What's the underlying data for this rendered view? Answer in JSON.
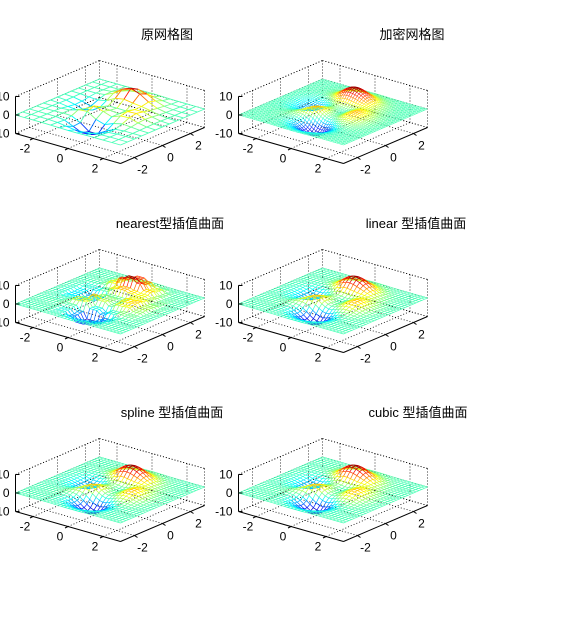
{
  "figure": {
    "background": "#ffffff",
    "axis_color": "#000000",
    "grid_color": "#000000"
  },
  "chart_data": [
    {
      "type": "mesh3d",
      "title": "原网格图",
      "grid_points": 13,
      "xlim": [
        -3,
        3
      ],
      "ylim": [
        -3,
        3
      ],
      "zlim": [
        -10,
        10
      ],
      "xticks": [
        "-2",
        "0",
        "2"
      ],
      "yticks": [
        "-2",
        "0",
        "2"
      ],
      "zticks": [
        "-10",
        "0",
        "10"
      ],
      "colormap": "jet",
      "grid": true,
      "peak_max": 8.1,
      "trough_min": -6.55
    },
    {
      "type": "mesh3d",
      "title": "加密网格图",
      "grid_points": 49,
      "xlim": [
        -3,
        3
      ],
      "ylim": [
        -3,
        3
      ],
      "zlim": [
        -10,
        10
      ],
      "xticks": [
        "-2",
        "0",
        "2"
      ],
      "yticks": [
        "-2",
        "0",
        "2"
      ],
      "zticks": [
        "-10",
        "0",
        "10"
      ],
      "colormap": "jet",
      "grid": true,
      "peak_max": 8.1,
      "trough_min": -6.55
    },
    {
      "type": "mesh3d",
      "title": "nearest型插值曲面",
      "grid_points": 31,
      "interpolation": "nearest",
      "xlim": [
        -3,
        3
      ],
      "ylim": [
        -3,
        3
      ],
      "zlim": [
        -10,
        10
      ],
      "xticks": [
        "-2",
        "0",
        "2"
      ],
      "yticks": [
        "-2",
        "0",
        "2"
      ],
      "zticks": [
        "-10",
        "0",
        "10"
      ],
      "colormap": "jet",
      "grid": true,
      "peak_max": 8.1,
      "trough_min": -6.55
    },
    {
      "type": "mesh3d",
      "title": "linear 型插值曲面",
      "grid_points": 31,
      "interpolation": "linear",
      "xlim": [
        -3,
        3
      ],
      "ylim": [
        -3,
        3
      ],
      "zlim": [
        -10,
        10
      ],
      "xticks": [
        "-2",
        "0",
        "2"
      ],
      "yticks": [
        "-2",
        "0",
        "2"
      ],
      "zticks": [
        "-10",
        "0",
        "10"
      ],
      "colormap": "jet",
      "grid": true,
      "peak_max": 8.1,
      "trough_min": -6.55
    },
    {
      "type": "mesh3d",
      "title": "spline 型插值曲面",
      "grid_points": 31,
      "interpolation": "spline",
      "xlim": [
        -3,
        3
      ],
      "ylim": [
        -3,
        3
      ],
      "zlim": [
        -10,
        10
      ],
      "xticks": [
        "-2",
        "0",
        "2"
      ],
      "yticks": [
        "-2",
        "0",
        "2"
      ],
      "zticks": [
        "-10",
        "0",
        "10"
      ],
      "colormap": "jet",
      "grid": true,
      "peak_max": 8.1,
      "trough_min": -6.55
    },
    {
      "type": "mesh3d",
      "title": "cubic  型插值曲面",
      "grid_points": 31,
      "interpolation": "cubic",
      "xlim": [
        -3,
        3
      ],
      "ylim": [
        -3,
        3
      ],
      "zlim": [
        -10,
        10
      ],
      "xticks": [
        "-2",
        "0",
        "2"
      ],
      "yticks": [
        "-2",
        "0",
        "2"
      ],
      "zticks": [
        "-10",
        "0",
        "10"
      ],
      "colormap": "jet",
      "grid": true,
      "peak_max": 8.1,
      "trough_min": -6.55
    }
  ]
}
